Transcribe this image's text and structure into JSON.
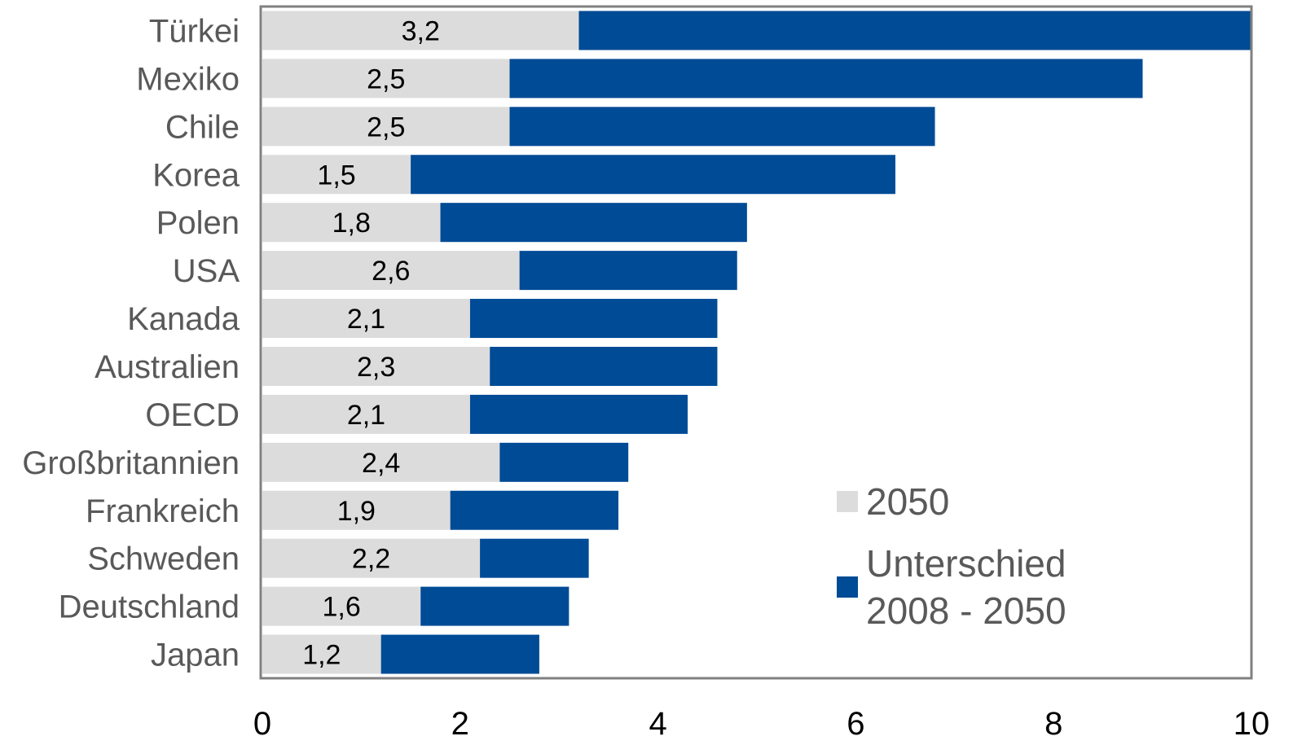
{
  "chart_data": {
    "type": "bar",
    "orientation": "horizontal",
    "stacked": true,
    "categories": [
      "Türkei",
      "Mexiko",
      "Chile",
      "Korea",
      "Polen",
      "USA",
      "Kanada",
      "Australien",
      "OECD",
      "Großbritannien",
      "Frankreich",
      "Schweden",
      "Deutschland",
      "Japan"
    ],
    "series": [
      {
        "name": "2050",
        "color": "#dcdcdc",
        "values": [
          3.2,
          2.5,
          2.5,
          1.5,
          1.8,
          2.6,
          2.1,
          2.3,
          2.1,
          2.4,
          1.9,
          2.2,
          1.6,
          1.2
        ],
        "data_labels": [
          "3,2",
          "2,5",
          "2,5",
          "1,5",
          "1,8",
          "2,6",
          "2,1",
          "2,3",
          "2,1",
          "2,4",
          "1,9",
          "2,2",
          "1,6",
          "1,2"
        ]
      },
      {
        "name": "Unterschied 2008 - 2050",
        "color": "#004b96",
        "values": [
          6.8,
          6.4,
          4.3,
          4.9,
          3.1,
          2.2,
          2.5,
          2.3,
          2.2,
          1.3,
          1.7,
          1.1,
          1.5,
          1.6
        ]
      }
    ],
    "xlim": [
      0,
      10
    ],
    "xticks": [
      "0",
      "2",
      "4",
      "6",
      "8",
      "10"
    ],
    "grid": false,
    "legend_position": "bottom-right inside",
    "legend": [
      {
        "lines": [
          "2050"
        ],
        "color": "#dcdcdc"
      },
      {
        "lines": [
          "Unterschied",
          "2008 - 2050"
        ],
        "color": "#004b96"
      }
    ],
    "frame_color": "#808080"
  }
}
